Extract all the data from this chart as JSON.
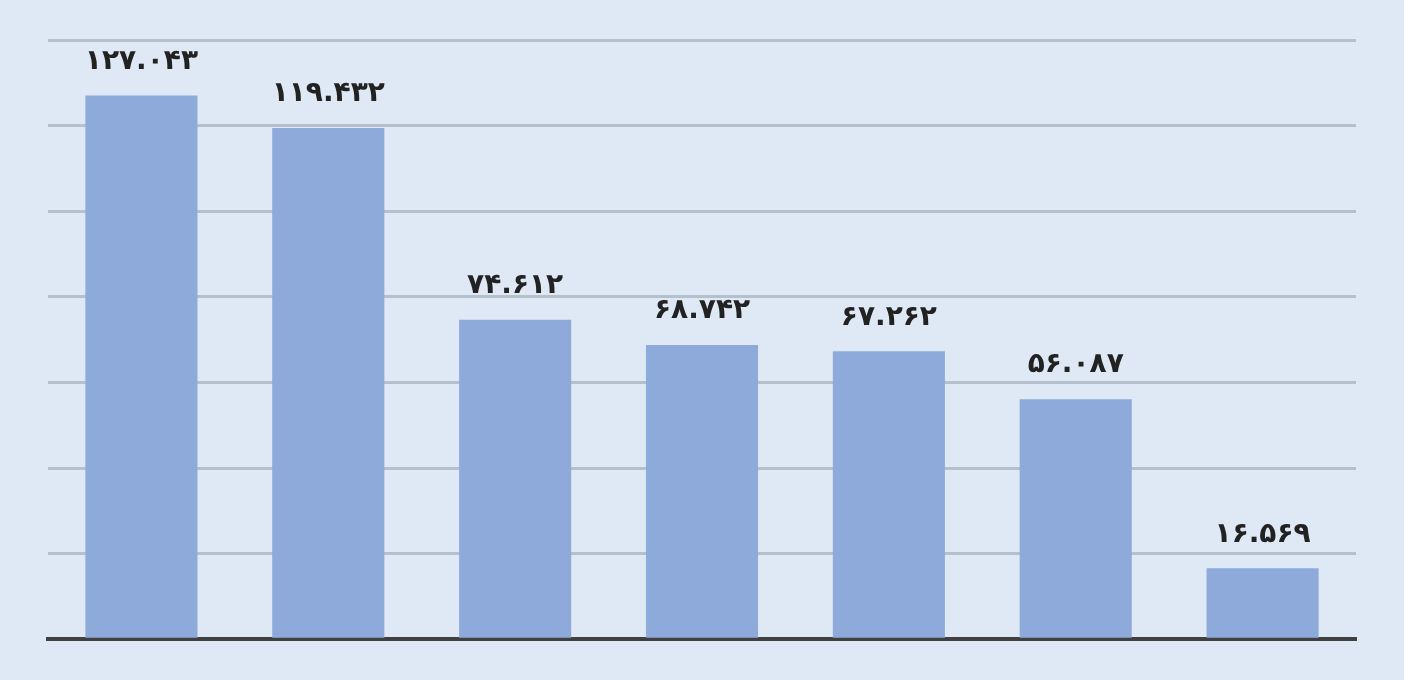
{
  "chart_data": {
    "type": "bar",
    "categories": [
      null,
      null,
      null,
      null,
      null,
      null,
      null
    ],
    "values": [
      127.043,
      119.432,
      74.612,
      68.742,
      67.262,
      56.087,
      16.569
    ],
    "value_labels": [
      "۱۲۷.۰۴۳",
      "۱۱۹.۴۳۲",
      "۷۴.۶۱۲",
      "۶۸.۷۴۲",
      "۶۷.۲۶۲",
      "۵۶.۰۸۷",
      "۱۶.۵۶۹"
    ],
    "color": "#8eaadb",
    "yticks": [
      {
        "value": 0,
        "label": null
      },
      {
        "value": 20,
        "label": null
      },
      {
        "value": 40,
        "label": null
      },
      {
        "value": 60,
        "label": null
      },
      {
        "value": 80,
        "label": null
      },
      {
        "value": 100,
        "label": null
      },
      {
        "value": 120,
        "label": null
      },
      {
        "value": 140,
        "label": null
      }
    ],
    "grid": "y",
    "legend": false
  }
}
